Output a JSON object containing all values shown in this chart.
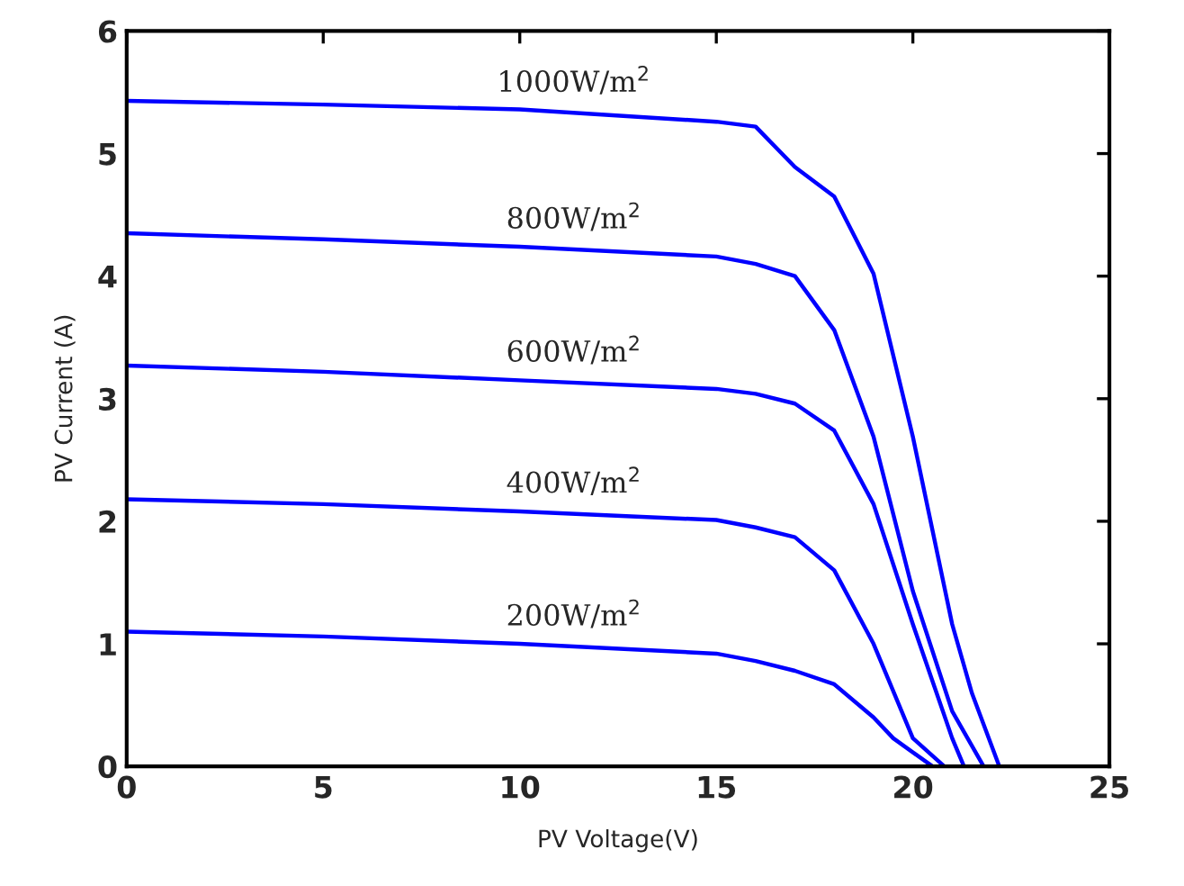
{
  "chart_data": {
    "type": "line",
    "xlabel": "PV Voltage(V)",
    "ylabel": "PV Current (A)",
    "xlim": [
      0,
      25
    ],
    "ylim": [
      0,
      6
    ],
    "xticks": [
      0,
      5,
      10,
      15,
      20,
      25
    ],
    "yticks": [
      0,
      1,
      2,
      3,
      4,
      5,
      6
    ],
    "grid": false,
    "legend": false,
    "marker": "none",
    "line_style": "solid",
    "series": [
      {
        "name": "1000W/m$^{2}$",
        "color": "#0000ff",
        "x": [
          0,
          5,
          10,
          15,
          16,
          17,
          18,
          19,
          20,
          21,
          21.5,
          22.2
        ],
        "values": [
          5.43,
          5.4,
          5.36,
          5.26,
          5.22,
          4.89,
          4.65,
          4.02,
          2.69,
          1.16,
          0.6,
          0
        ]
      },
      {
        "name": "800W/m$^{2}$",
        "color": "#0000ff",
        "x": [
          0,
          5,
          10,
          15,
          16,
          17,
          18,
          19,
          20,
          21,
          21.8
        ],
        "values": [
          4.35,
          4.3,
          4.24,
          4.16,
          4.1,
          4.0,
          3.56,
          2.69,
          1.43,
          0.45,
          0
        ]
      },
      {
        "name": "600W/m$^{2}$",
        "color": "#0000ff",
        "x": [
          0,
          5,
          10,
          15,
          16,
          17,
          18,
          19,
          20,
          21,
          21.3
        ],
        "values": [
          3.27,
          3.22,
          3.15,
          3.08,
          3.04,
          2.96,
          2.74,
          2.14,
          1.16,
          0.23,
          0
        ]
      },
      {
        "name": "400W/m$^{2}$",
        "color": "#0000ff",
        "x": [
          0,
          5,
          10,
          15,
          16,
          17,
          18,
          19,
          20,
          20.8
        ],
        "values": [
          2.18,
          2.14,
          2.08,
          2.01,
          1.95,
          1.87,
          1.6,
          1.0,
          0.23,
          0
        ]
      },
      {
        "name": "200W/m$^{2}$",
        "color": "#0000ff",
        "x": [
          0,
          5,
          10,
          15,
          16,
          17,
          18,
          19,
          19.5,
          20.5
        ],
        "values": [
          1.1,
          1.06,
          1.0,
          0.92,
          0.86,
          0.78,
          0.67,
          0.4,
          0.23,
          0
        ]
      }
    ]
  }
}
